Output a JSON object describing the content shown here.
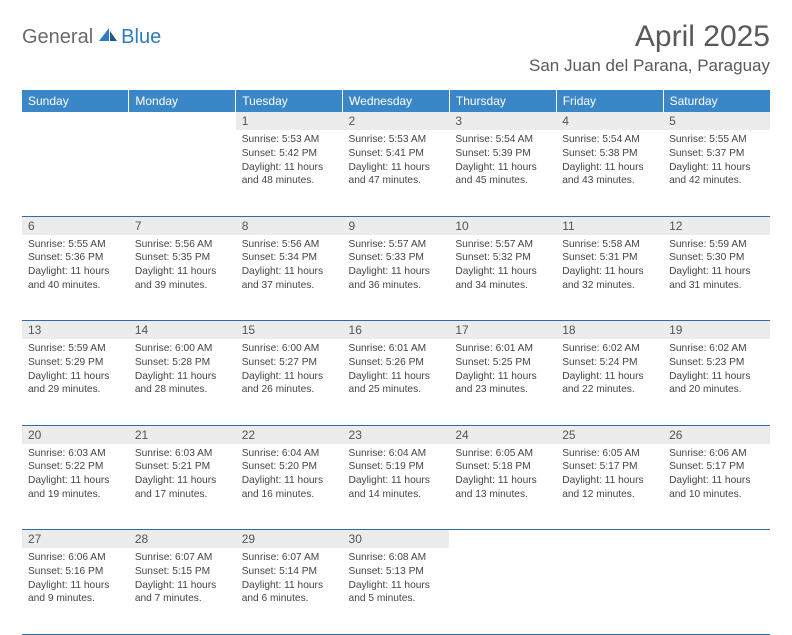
{
  "brand": {
    "part1": "General",
    "part2": "Blue"
  },
  "title": "April 2025",
  "location": "San Juan del Parana, Paraguay",
  "colors": {
    "header_bg": "#3a87c8",
    "header_text": "#ffffff",
    "divider": "#2c6da6",
    "daynum_bg": "#ececec",
    "text": "#454545",
    "title_text": "#595959",
    "brand_gray": "#6a6a6a",
    "brand_blue": "#2f7bbf"
  },
  "weekdays": [
    "Sunday",
    "Monday",
    "Tuesday",
    "Wednesday",
    "Thursday",
    "Friday",
    "Saturday"
  ],
  "weeks": [
    [
      null,
      null,
      {
        "n": "1",
        "sr": "5:53 AM",
        "ss": "5:42 PM",
        "dl": "11 hours and 48 minutes."
      },
      {
        "n": "2",
        "sr": "5:53 AM",
        "ss": "5:41 PM",
        "dl": "11 hours and 47 minutes."
      },
      {
        "n": "3",
        "sr": "5:54 AM",
        "ss": "5:39 PM",
        "dl": "11 hours and 45 minutes."
      },
      {
        "n": "4",
        "sr": "5:54 AM",
        "ss": "5:38 PM",
        "dl": "11 hours and 43 minutes."
      },
      {
        "n": "5",
        "sr": "5:55 AM",
        "ss": "5:37 PM",
        "dl": "11 hours and 42 minutes."
      }
    ],
    [
      {
        "n": "6",
        "sr": "5:55 AM",
        "ss": "5:36 PM",
        "dl": "11 hours and 40 minutes."
      },
      {
        "n": "7",
        "sr": "5:56 AM",
        "ss": "5:35 PM",
        "dl": "11 hours and 39 minutes."
      },
      {
        "n": "8",
        "sr": "5:56 AM",
        "ss": "5:34 PM",
        "dl": "11 hours and 37 minutes."
      },
      {
        "n": "9",
        "sr": "5:57 AM",
        "ss": "5:33 PM",
        "dl": "11 hours and 36 minutes."
      },
      {
        "n": "10",
        "sr": "5:57 AM",
        "ss": "5:32 PM",
        "dl": "11 hours and 34 minutes."
      },
      {
        "n": "11",
        "sr": "5:58 AM",
        "ss": "5:31 PM",
        "dl": "11 hours and 32 minutes."
      },
      {
        "n": "12",
        "sr": "5:59 AM",
        "ss": "5:30 PM",
        "dl": "11 hours and 31 minutes."
      }
    ],
    [
      {
        "n": "13",
        "sr": "5:59 AM",
        "ss": "5:29 PM",
        "dl": "11 hours and 29 minutes."
      },
      {
        "n": "14",
        "sr": "6:00 AM",
        "ss": "5:28 PM",
        "dl": "11 hours and 28 minutes."
      },
      {
        "n": "15",
        "sr": "6:00 AM",
        "ss": "5:27 PM",
        "dl": "11 hours and 26 minutes."
      },
      {
        "n": "16",
        "sr": "6:01 AM",
        "ss": "5:26 PM",
        "dl": "11 hours and 25 minutes."
      },
      {
        "n": "17",
        "sr": "6:01 AM",
        "ss": "5:25 PM",
        "dl": "11 hours and 23 minutes."
      },
      {
        "n": "18",
        "sr": "6:02 AM",
        "ss": "5:24 PM",
        "dl": "11 hours and 22 minutes."
      },
      {
        "n": "19",
        "sr": "6:02 AM",
        "ss": "5:23 PM",
        "dl": "11 hours and 20 minutes."
      }
    ],
    [
      {
        "n": "20",
        "sr": "6:03 AM",
        "ss": "5:22 PM",
        "dl": "11 hours and 19 minutes."
      },
      {
        "n": "21",
        "sr": "6:03 AM",
        "ss": "5:21 PM",
        "dl": "11 hours and 17 minutes."
      },
      {
        "n": "22",
        "sr": "6:04 AM",
        "ss": "5:20 PM",
        "dl": "11 hours and 16 minutes."
      },
      {
        "n": "23",
        "sr": "6:04 AM",
        "ss": "5:19 PM",
        "dl": "11 hours and 14 minutes."
      },
      {
        "n": "24",
        "sr": "6:05 AM",
        "ss": "5:18 PM",
        "dl": "11 hours and 13 minutes."
      },
      {
        "n": "25",
        "sr": "6:05 AM",
        "ss": "5:17 PM",
        "dl": "11 hours and 12 minutes."
      },
      {
        "n": "26",
        "sr": "6:06 AM",
        "ss": "5:17 PM",
        "dl": "11 hours and 10 minutes."
      }
    ],
    [
      {
        "n": "27",
        "sr": "6:06 AM",
        "ss": "5:16 PM",
        "dl": "11 hours and 9 minutes."
      },
      {
        "n": "28",
        "sr": "6:07 AM",
        "ss": "5:15 PM",
        "dl": "11 hours and 7 minutes."
      },
      {
        "n": "29",
        "sr": "6:07 AM",
        "ss": "5:14 PM",
        "dl": "11 hours and 6 minutes."
      },
      {
        "n": "30",
        "sr": "6:08 AM",
        "ss": "5:13 PM",
        "dl": "11 hours and 5 minutes."
      },
      null,
      null,
      null
    ]
  ],
  "labels": {
    "sunrise": "Sunrise:",
    "sunset": "Sunset:",
    "daylight": "Daylight:"
  }
}
